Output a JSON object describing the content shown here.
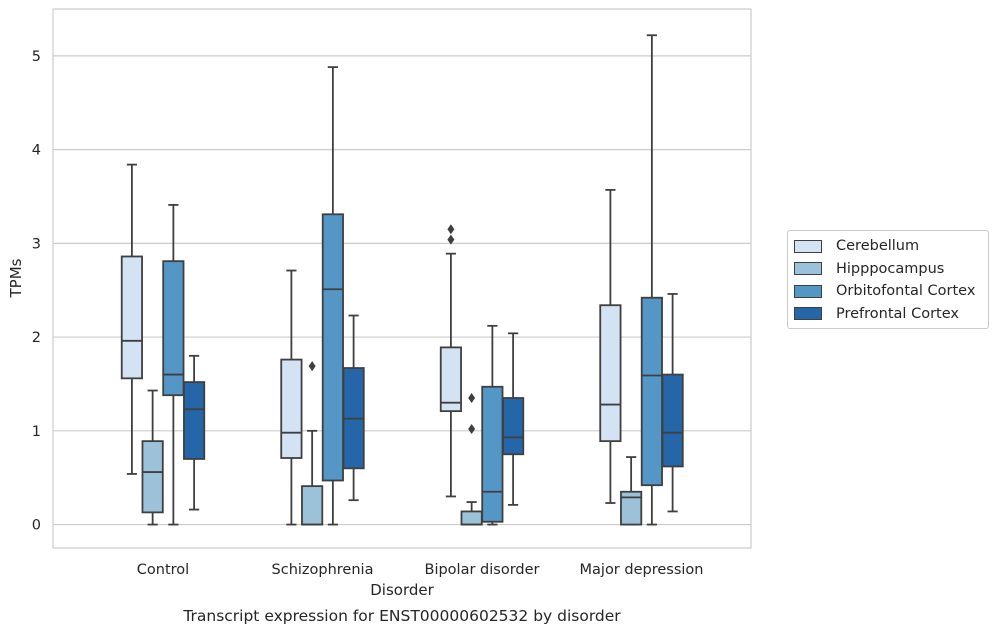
{
  "chart_data": {
    "type": "box",
    "xlabel": "Disorder",
    "ylabel": "TPMs",
    "caption": "Transcript expression for ENST00000602532 by disorder",
    "ylim": [
      -0.25,
      5.5
    ],
    "yticks": [
      0,
      1,
      2,
      3,
      4,
      5
    ],
    "grid": true,
    "legend_position": "right",
    "categories": [
      "Control",
      "Schizophrenia",
      "Bipolar disorder",
      "Major depression"
    ],
    "series": [
      {
        "name": "Cerebellum",
        "color": "#d4e3f4",
        "boxes": [
          {
            "whisker_low": 0.54,
            "q1": 1.56,
            "median": 1.96,
            "q3": 2.86,
            "whisker_high": 3.84,
            "outliers": []
          },
          {
            "whisker_low": 0.0,
            "q1": 0.71,
            "median": 0.98,
            "q3": 1.76,
            "whisker_high": 2.71,
            "outliers": []
          },
          {
            "whisker_low": 0.3,
            "q1": 1.21,
            "median": 1.3,
            "q3": 1.89,
            "whisker_high": 2.89,
            "outliers": [
              3.04,
              3.15
            ]
          },
          {
            "whisker_low": 0.23,
            "q1": 0.89,
            "median": 1.28,
            "q3": 2.34,
            "whisker_high": 3.57,
            "outliers": []
          }
        ]
      },
      {
        "name": "Hipppocampus",
        "color": "#9cc2da",
        "boxes": [
          {
            "whisker_low": 0.0,
            "q1": 0.13,
            "median": 0.56,
            "q3": 0.89,
            "whisker_high": 1.43,
            "outliers": []
          },
          {
            "whisker_low": 0.0,
            "q1": 0.0,
            "median": 0.0,
            "q3": 0.41,
            "whisker_high": 1.0,
            "outliers": [
              1.69
            ]
          },
          {
            "whisker_low": 0.0,
            "q1": 0.0,
            "median": 0.0,
            "q3": 0.14,
            "whisker_high": 0.24,
            "outliers": [
              1.02,
              1.35
            ]
          },
          {
            "whisker_low": 0.0,
            "q1": 0.0,
            "median": 0.29,
            "q3": 0.35,
            "whisker_high": 0.72,
            "outliers": []
          }
        ]
      },
      {
        "name": "Orbitofontal Cortex",
        "color": "#5496c6",
        "boxes": [
          {
            "whisker_low": 0.0,
            "q1": 1.38,
            "median": 1.6,
            "q3": 2.81,
            "whisker_high": 3.41,
            "outliers": []
          },
          {
            "whisker_low": 0.0,
            "q1": 0.47,
            "median": 2.51,
            "q3": 3.31,
            "whisker_high": 4.88,
            "outliers": []
          },
          {
            "whisker_low": 0.0,
            "q1": 0.03,
            "median": 0.35,
            "q3": 1.47,
            "whisker_high": 2.12,
            "outliers": []
          },
          {
            "whisker_low": 0.0,
            "q1": 0.42,
            "median": 1.59,
            "q3": 2.42,
            "whisker_high": 5.22,
            "outliers": []
          }
        ]
      },
      {
        "name": "Prefrontal Cortex",
        "color": "#2566a8",
        "boxes": [
          {
            "whisker_low": 0.16,
            "q1": 0.7,
            "median": 1.23,
            "q3": 1.52,
            "whisker_high": 1.8,
            "outliers": []
          },
          {
            "whisker_low": 0.26,
            "q1": 0.6,
            "median": 1.13,
            "q3": 1.67,
            "whisker_high": 2.23,
            "outliers": []
          },
          {
            "whisker_low": 0.21,
            "q1": 0.75,
            "median": 0.93,
            "q3": 1.35,
            "whisker_high": 2.04,
            "outliers": []
          },
          {
            "whisker_low": 0.14,
            "q1": 0.62,
            "median": 0.98,
            "q3": 1.6,
            "whisker_high": 2.46,
            "outliers": []
          }
        ]
      }
    ]
  }
}
